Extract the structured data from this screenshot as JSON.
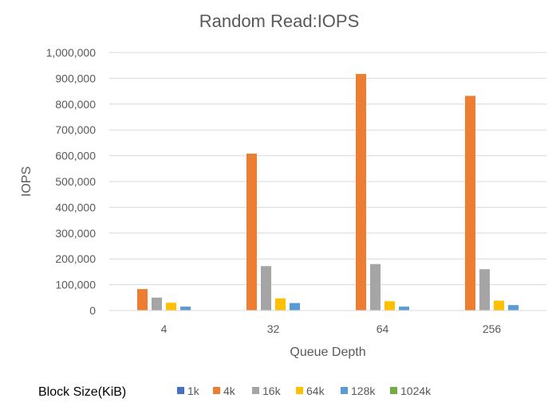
{
  "chart_data": {
    "type": "bar",
    "title": "Random Read:IOPS",
    "xlabel": "Queue Depth",
    "ylabel": "IOPS",
    "ylim": [
      0,
      1000000
    ],
    "yticks": [
      "0",
      "100,000",
      "200,000",
      "300,000",
      "400,000",
      "500,000",
      "600,000",
      "700,000",
      "800,000",
      "900,000",
      "1,000,000"
    ],
    "categories": [
      "4",
      "32",
      "64",
      "256"
    ],
    "legend_title": "Block Size(KiB)",
    "legend_position": "bottom",
    "grid": true,
    "series": [
      {
        "name": "1k",
        "color": "#4472C4",
        "values": [
          0,
          0,
          0,
          0
        ]
      },
      {
        "name": "4k",
        "color": "#ED7D31",
        "values": [
          83000,
          608000,
          917000,
          832000
        ]
      },
      {
        "name": "16k",
        "color": "#A5A5A5",
        "values": [
          50000,
          172000,
          180000,
          160000
        ]
      },
      {
        "name": "64k",
        "color": "#FFC000",
        "values": [
          30000,
          47000,
          36000,
          38000
        ]
      },
      {
        "name": "128k",
        "color": "#5B9BD5",
        "values": [
          15000,
          29000,
          15000,
          21000
        ]
      },
      {
        "name": "1024k",
        "color": "#70AD47",
        "values": [
          0,
          0,
          0,
          0
        ]
      }
    ]
  }
}
